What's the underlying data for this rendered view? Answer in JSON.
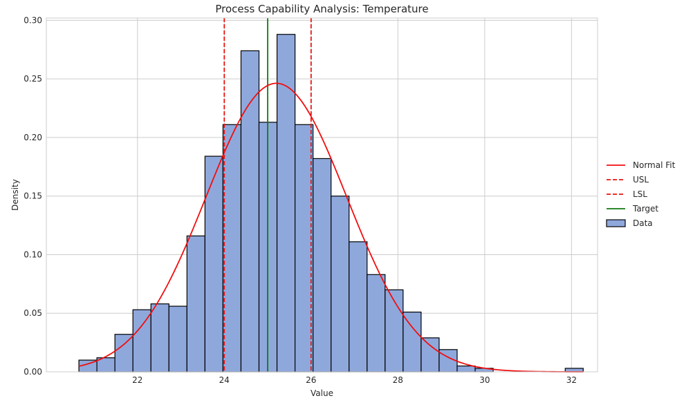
{
  "chart_data": {
    "type": "bar",
    "title": "Process Capability Analysis: Temperature",
    "xlabel": "Value",
    "ylabel": "Density",
    "xlim": [
      19.9,
      32.6
    ],
    "ylim": [
      0,
      0.302
    ],
    "xticks": [
      22,
      24,
      26,
      28,
      30,
      32
    ],
    "yticks": [
      0.0,
      0.05,
      0.1,
      0.15,
      0.2,
      0.25,
      0.3
    ],
    "grid": true,
    "legend_position": "right",
    "bins": {
      "edges": [
        20.65,
        21.065,
        21.48,
        21.895,
        22.31,
        22.725,
        23.14,
        23.555,
        23.97,
        24.385,
        24.8,
        25.215,
        25.63,
        26.045,
        26.46,
        26.875,
        27.29,
        27.705,
        28.12,
        28.535,
        28.95,
        29.365,
        29.78,
        30.195,
        30.61,
        31.025,
        31.44,
        31.855,
        32.27
      ],
      "values": [
        0.01,
        0.012,
        0.032,
        0.053,
        0.058,
        0.056,
        0.116,
        0.184,
        0.211,
        0.274,
        0.213,
        0.288,
        0.211,
        0.182,
        0.15,
        0.111,
        0.083,
        0.07,
        0.051,
        0.029,
        0.019,
        0.005,
        0.003,
        0.0,
        0.0,
        0.0,
        0.0,
        0.003
      ]
    },
    "normal_fit": {
      "mean": 25.2,
      "std": 1.62
    },
    "reference_lines": [
      {
        "name": "USL",
        "x": 26.0,
        "color": "#e8130e",
        "style": "dashed"
      },
      {
        "name": "LSL",
        "x": 24.0,
        "color": "#e8130e",
        "style": "dashed"
      },
      {
        "name": "Target",
        "x": 25.0,
        "color": "#107a10",
        "style": "solid"
      }
    ],
    "series": [
      {
        "name": "Normal Fit",
        "kind": "line",
        "color": "#f20d0d"
      },
      {
        "name": "USL",
        "kind": "dashed",
        "color": "#e8130e"
      },
      {
        "name": "LSL",
        "kind": "dashed",
        "color": "#e8130e"
      },
      {
        "name": "Target",
        "kind": "line",
        "color": "#107a10"
      },
      {
        "name": "Data",
        "kind": "patch",
        "color": "#8fa8dc"
      }
    ],
    "colors": {
      "bar_fill": "#8fa8dc",
      "bar_edge": "#000000",
      "grid": "#cccccc",
      "axes_edge": "#cccccc"
    }
  }
}
